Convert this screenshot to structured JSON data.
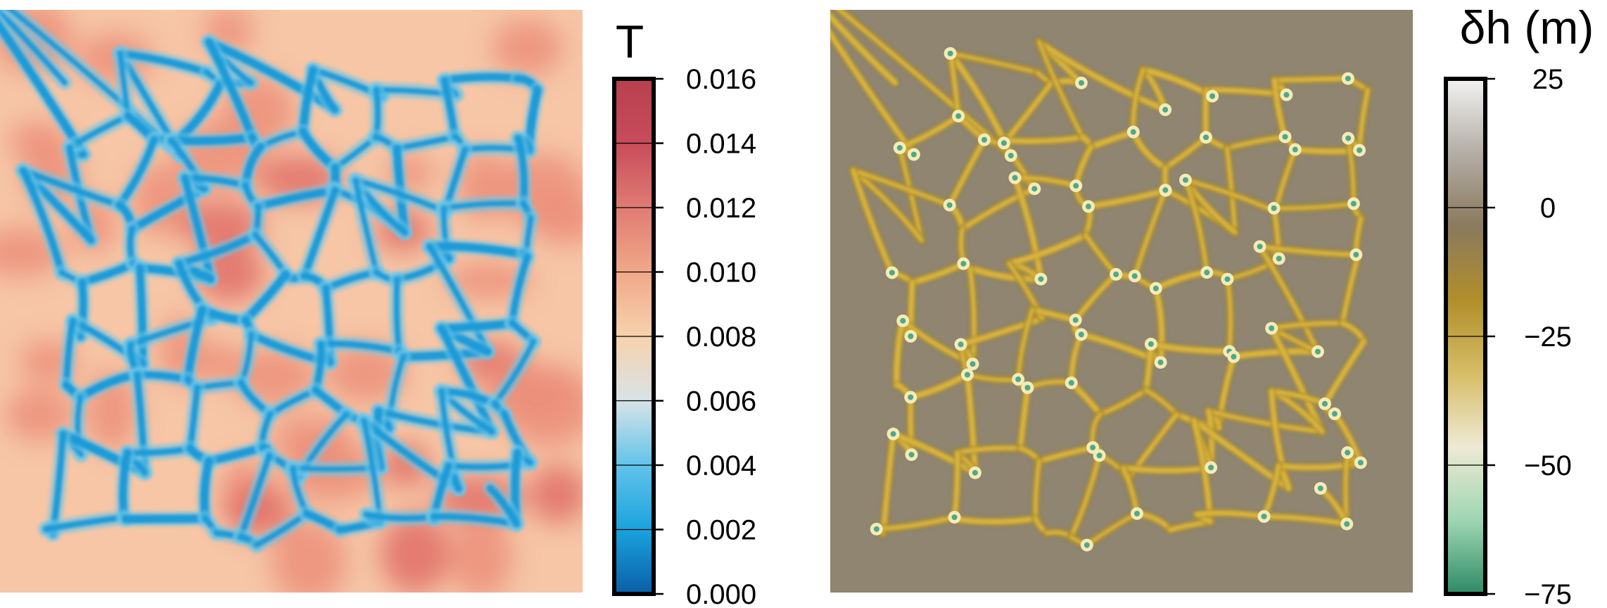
{
  "chart_data": [
    {
      "type": "heatmap",
      "title": "",
      "colorbar": {
        "title": "T",
        "range": [
          0.0,
          0.016
        ],
        "ticks": [
          0.0,
          0.002,
          0.004,
          0.006,
          0.008,
          0.01,
          0.012,
          0.014,
          0.016
        ],
        "tick_labels": [
          "0.000",
          "0.002",
          "0.004",
          "0.006",
          "0.008",
          "0.010",
          "0.012",
          "0.014",
          "0.016"
        ],
        "colormap": [
          "#0a5ea8",
          "#1aa3dd",
          "#62c3ea",
          "#d7e3e6",
          "#f7d2ad",
          "#f0a889",
          "#e07b73",
          "#c84c5b",
          "#b8404f"
        ]
      },
      "field": {
        "background_value": 0.0085,
        "cell_boundary_value": 0.003,
        "hot_patch_value": 0.011,
        "background_color": "#f6c6a6",
        "cell_boundary_color": "#1e9bd8",
        "hot_patch_color": "#ec8f7a"
      }
    },
    {
      "type": "heatmap",
      "title": "",
      "colorbar": {
        "title": "δh (m)",
        "range": [
          -75,
          25
        ],
        "ticks": [
          -75,
          -50,
          -25,
          0,
          25
        ],
        "tick_labels": [
          "−75",
          "−50",
          "−25",
          "0",
          "25"
        ],
        "colormap": [
          "#2e8a66",
          "#9fd6b3",
          "#eee9d4",
          "#d6bd66",
          "#b08e2a",
          "#8a7a5e",
          "#b3aea6",
          "#f2f2f2"
        ]
      },
      "field": {
        "background_value": 2,
        "ridge_value": -25,
        "node_value": -60,
        "background_color": "#8f8570",
        "ridge_color": "#d9b43c",
        "node_color": "#4fa887"
      }
    }
  ]
}
